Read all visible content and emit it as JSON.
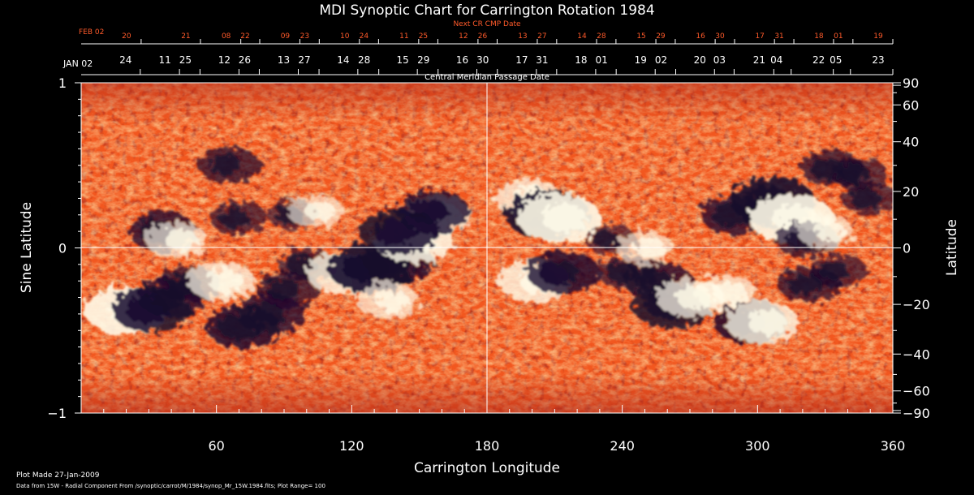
{
  "chart_data": {
    "type": "heatmap",
    "title": "MDI Synoptic Chart for Carrington Rotation 1984",
    "xlabel": "Carrington Longitude",
    "ylabel_left": "Sine Latitude",
    "ylabel_right": "Latitude",
    "xlim": [
      0,
      360
    ],
    "ylim": [
      -1,
      1
    ],
    "x_ticks": [
      60,
      120,
      180,
      240,
      300,
      360
    ],
    "y_ticks_left": [
      {
        "value": 1,
        "label": "1"
      },
      {
        "value": 0,
        "label": "0"
      },
      {
        "value": -1,
        "label": "−1"
      }
    ],
    "y_ticks_right": [
      90,
      60,
      40,
      20,
      0,
      -20,
      -40,
      -60,
      -90
    ],
    "colormap": [
      "#12082a",
      "#5a1a2a",
      "#c8321a",
      "#ff5a1e",
      "#ffa040",
      "#ffffff"
    ],
    "central_meridian_axis": {
      "title": "Central Meridian Passage Date",
      "start_label": "JAN 02",
      "labels": [
        "05",
        "04",
        "03",
        "02",
        "01",
        "31",
        "30",
        "29",
        "28",
        "27",
        "26",
        "25",
        "24",
        "23",
        "22",
        "21",
        "20",
        "19",
        "18",
        "17",
        "16",
        "15",
        "14",
        "13",
        "12",
        "11"
      ],
      "label_longitudes": [
        341.2,
        314.9,
        289.6,
        263.7,
        237.3,
        210.9,
        184.6,
        158.3,
        132.0,
        105.5,
        79.0,
        52.7,
        26.2,
        360.0,
        333.6,
        307.2,
        280.9,
        254.6,
        228.2,
        201.9,
        175.5,
        149.1,
        122.7,
        96.3,
        70.0,
        43.6
      ]
    },
    "next_cr_axis": {
      "title": "Next CR CMP Date",
      "start_label": "FEB 02",
      "labels": [
        "01",
        "31",
        "30",
        "29",
        "28",
        "27",
        "26",
        "25",
        "24",
        "23",
        "22",
        "21",
        "20",
        "19",
        "18",
        "17",
        "16",
        "15",
        "14",
        "13",
        "12",
        "11",
        "10",
        "09",
        "08"
      ],
      "label_longitudes": [
        342.3,
        316.1,
        289.8,
        263.5,
        237.2,
        210.9,
        184.5,
        158.2,
        131.9,
        105.6,
        79.2,
        52.9,
        26.6,
        360.0,
        333.7,
        307.5,
        281.2,
        254.9,
        228.6,
        202.3,
        176.0,
        149.7,
        123.4,
        97.0,
        70.8
      ]
    },
    "features": [
      {
        "lon": 20,
        "sinlat": -0.38,
        "polarity": "positive",
        "strength": 1.0
      },
      {
        "lon": 31,
        "sinlat": -0.37,
        "polarity": "negative",
        "strength": 0.9
      },
      {
        "lon": 40,
        "sinlat": -0.3,
        "polarity": "negative",
        "strength": 0.7
      },
      {
        "lon": 48,
        "sinlat": -0.22,
        "polarity": "negative",
        "strength": 0.6
      },
      {
        "lon": 62,
        "sinlat": -0.2,
        "polarity": "positive",
        "strength": 0.7
      },
      {
        "lon": 72,
        "sinlat": -0.48,
        "polarity": "negative",
        "strength": 0.8
      },
      {
        "lon": 84,
        "sinlat": -0.4,
        "polarity": "negative",
        "strength": 0.7
      },
      {
        "lon": 92,
        "sinlat": -0.25,
        "polarity": "negative",
        "strength": 0.6
      },
      {
        "lon": 100,
        "sinlat": -0.1,
        "polarity": "negative",
        "strength": 0.5
      },
      {
        "lon": 116,
        "sinlat": -0.15,
        "polarity": "positive",
        "strength": 0.8
      },
      {
        "lon": 128,
        "sinlat": -0.12,
        "polarity": "negative",
        "strength": 1.0
      },
      {
        "lon": 140,
        "sinlat": -0.08,
        "polarity": "negative",
        "strength": 0.8
      },
      {
        "lon": 136,
        "sinlat": -0.32,
        "polarity": "positive",
        "strength": 0.6
      },
      {
        "lon": 147,
        "sinlat": 0.05,
        "polarity": "positive",
        "strength": 0.9
      },
      {
        "lon": 158,
        "sinlat": 0.2,
        "polarity": "positive",
        "strength": 0.7
      },
      {
        "lon": 36,
        "sinlat": 0.1,
        "polarity": "negative",
        "strength": 0.7
      },
      {
        "lon": 42,
        "sinlat": 0.05,
        "polarity": "positive",
        "strength": 0.6
      },
      {
        "lon": 66,
        "sinlat": 0.5,
        "polarity": "negative",
        "strength": 0.6
      },
      {
        "lon": 70,
        "sinlat": 0.18,
        "polarity": "negative",
        "strength": 0.5
      },
      {
        "lon": 94,
        "sinlat": 0.2,
        "polarity": "negative",
        "strength": 0.4
      },
      {
        "lon": 104,
        "sinlat": 0.22,
        "polarity": "positive",
        "strength": 0.5
      },
      {
        "lon": 141,
        "sinlat": 0.1,
        "polarity": "negative",
        "strength": 0.9
      },
      {
        "lon": 156,
        "sinlat": 0.22,
        "polarity": "negative",
        "strength": 0.8
      },
      {
        "lon": 198,
        "sinlat": 0.3,
        "polarity": "positive",
        "strength": 0.7
      },
      {
        "lon": 207,
        "sinlat": 0.2,
        "polarity": "negative",
        "strength": 1.0
      },
      {
        "lon": 212,
        "sinlat": 0.18,
        "polarity": "positive",
        "strength": 1.0
      },
      {
        "lon": 201,
        "sinlat": -0.2,
        "polarity": "positive",
        "strength": 0.8
      },
      {
        "lon": 214,
        "sinlat": -0.15,
        "polarity": "negative",
        "strength": 0.8
      },
      {
        "lon": 242,
        "sinlat": -0.15,
        "polarity": "negative",
        "strength": 0.5
      },
      {
        "lon": 256,
        "sinlat": -0.2,
        "polarity": "negative",
        "strength": 0.7
      },
      {
        "lon": 262,
        "sinlat": -0.35,
        "polarity": "negative",
        "strength": 0.9
      },
      {
        "lon": 270,
        "sinlat": -0.3,
        "polarity": "positive",
        "strength": 0.7
      },
      {
        "lon": 286,
        "sinlat": -0.27,
        "polarity": "positive",
        "strength": 0.6
      },
      {
        "lon": 297,
        "sinlat": -0.45,
        "polarity": "negative",
        "strength": 0.8
      },
      {
        "lon": 302,
        "sinlat": -0.45,
        "polarity": "positive",
        "strength": 0.8
      },
      {
        "lon": 323,
        "sinlat": -0.22,
        "polarity": "negative",
        "strength": 0.6
      },
      {
        "lon": 336,
        "sinlat": -0.14,
        "polarity": "negative",
        "strength": 0.5
      },
      {
        "lon": 290,
        "sinlat": 0.2,
        "polarity": "negative",
        "strength": 0.7
      },
      {
        "lon": 307,
        "sinlat": 0.28,
        "polarity": "negative",
        "strength": 1.0
      },
      {
        "lon": 315,
        "sinlat": 0.18,
        "polarity": "positive",
        "strength": 1.0
      },
      {
        "lon": 322,
        "sinlat": 0.05,
        "polarity": "negative",
        "strength": 0.6
      },
      {
        "lon": 330,
        "sinlat": 0.1,
        "polarity": "positive",
        "strength": 0.5
      },
      {
        "lon": 333,
        "sinlat": 0.48,
        "polarity": "negative",
        "strength": 0.6
      },
      {
        "lon": 345,
        "sinlat": 0.45,
        "polarity": "negative",
        "strength": 0.5
      },
      {
        "lon": 350,
        "sinlat": 0.3,
        "polarity": "negative",
        "strength": 0.5
      },
      {
        "lon": 235,
        "sinlat": 0.05,
        "polarity": "negative",
        "strength": 0.4
      },
      {
        "lon": 250,
        "sinlat": 0.0,
        "polarity": "positive",
        "strength": 0.5
      }
    ],
    "footer": {
      "plot_made": "Plot Made 27-Jan-2009",
      "data_source": "Data from 15W - Radial Component From /synoptic/carrot/M/1984/synop_Mr_15W.1984.fits; Plot Range= 100"
    }
  }
}
